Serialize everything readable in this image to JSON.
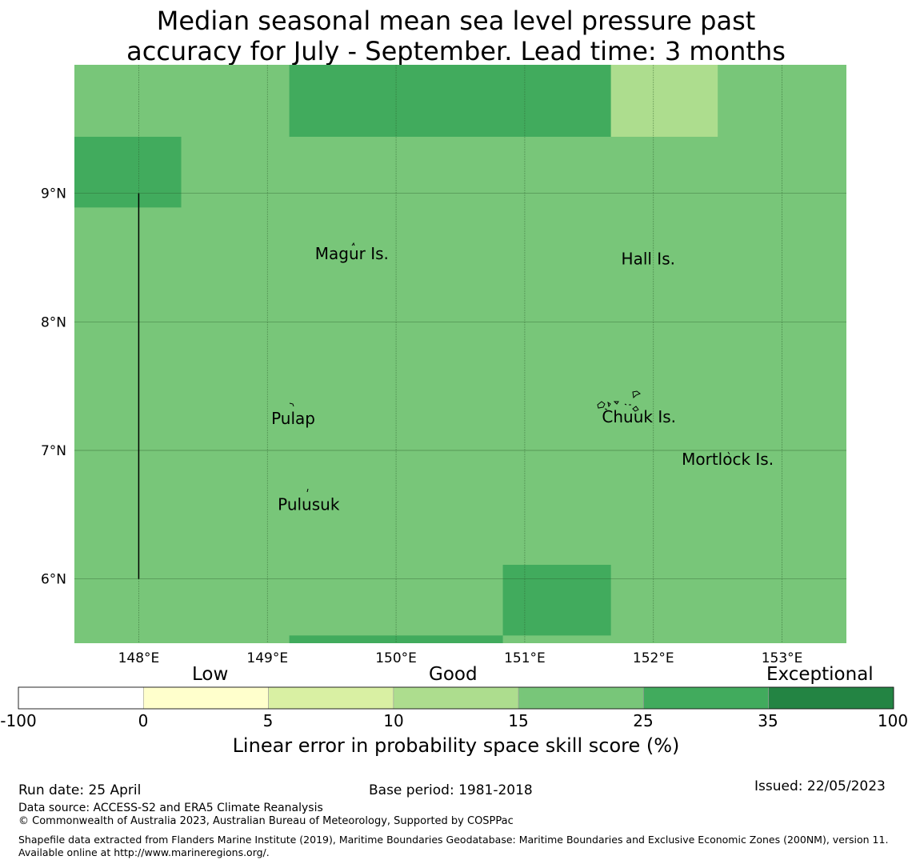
{
  "title": {
    "line1": "Median seasonal mean sea level pressure past",
    "line2": "accuracy for July - September. Lead time: 3 months"
  },
  "map": {
    "lon_range": [
      147.5,
      153.5
    ],
    "lat_range": [
      5.5,
      10.0
    ],
    "lon_ticks": [
      "148°E",
      "149°E",
      "150°E",
      "151°E",
      "152°E",
      "153°E"
    ],
    "lat_ticks": [
      "9°N",
      "8°N",
      "7°N",
      "6°N"
    ],
    "background_color": "#78c679",
    "cells": [
      {
        "lon0": 147.5,
        "lon1": 148.33,
        "lat0": 8.89,
        "lat1": 9.44,
        "color": "#41ab5d"
      },
      {
        "lon0": 149.17,
        "lon1": 151.67,
        "lat0": 9.44,
        "lat1": 10.0,
        "color": "#41ab5d"
      },
      {
        "lon0": 151.67,
        "lon1": 152.5,
        "lat0": 9.44,
        "lat1": 10.0,
        "color": "#addd8e"
      },
      {
        "lon0": 150.83,
        "lon1": 151.67,
        "lat0": 5.56,
        "lat1": 6.11,
        "color": "#41ab5d"
      },
      {
        "lon0": 149.17,
        "lon1": 150.83,
        "lat0": 5.5,
        "lat1": 5.56,
        "color": "#41ab5d"
      }
    ],
    "boundary_line": {
      "lon": 148.0,
      "lat0": 6.0,
      "lat1": 9.0
    },
    "place_labels": [
      {
        "name": "Magur Is.",
        "lon": 149.37,
        "lat": 8.53
      },
      {
        "name": "Hall Is.",
        "lon": 151.75,
        "lat": 8.49
      },
      {
        "name": "Pulap",
        "lon": 149.03,
        "lat": 7.25
      },
      {
        "name": "Chuuk Is.",
        "lon": 151.6,
        "lat": 7.26
      },
      {
        "name": "Mortlock Is.",
        "lon": 152.22,
        "lat": 6.93
      },
      {
        "name": "Pulusuk",
        "lon": 149.08,
        "lat": 6.58
      }
    ]
  },
  "colorbar": {
    "category_labels": [
      "Low",
      "Good",
      "Exceptional"
    ],
    "tick_labels": [
      "-100",
      "0",
      "5",
      "10",
      "15",
      "25",
      "35",
      "100"
    ],
    "colors": [
      "#ffffff",
      "#ffffcc",
      "#d9f0a3",
      "#addd8e",
      "#78c679",
      "#41ab5d",
      "#238443"
    ],
    "label": "Linear error in probability space skill score (%)"
  },
  "footer": {
    "run_date": "Run date: 25 April",
    "base_period": "Base period: 1981-2018",
    "issued": "Issued: 22/05/2023",
    "data_source": "Data source: ACCESS-S2 and ERA5 Climate Reanalysis",
    "copyright": "© Commonwealth of Australia 2023, Australian Bureau of Meteorology, Supported by COSPPac",
    "shapefile": "Shapefile data extracted from Flanders Marine Institute (2019), Maritime Boundaries Geodatabase: Maritime Boundaries and Exclusive Economic Zones (200NM), version 11. Available online at http://www.marineregions.org/."
  }
}
